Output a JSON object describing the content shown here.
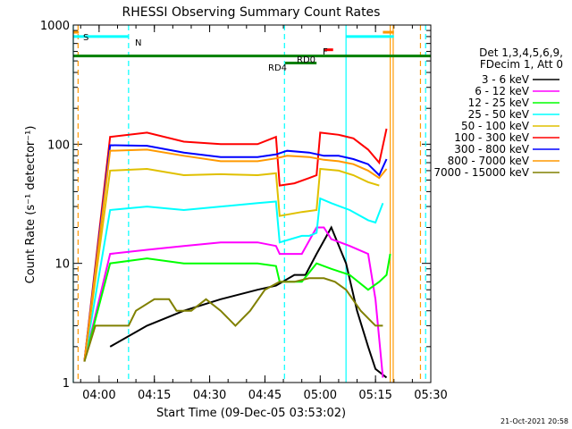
{
  "chart_data": {
    "type": "line",
    "title": "RHESSI Observing Summary Count Rates",
    "xlabel": "Start Time (09-Dec-05 03:53:02)",
    "ylabel": "Count Rate (s⁻¹ detector⁻¹)",
    "yscale": "log",
    "ylim": [
      1,
      1000
    ],
    "xlim_minutes_after_0353": [
      0,
      97
    ],
    "x_ticks": [
      {
        "label": "04:00",
        "t": 7
      },
      {
        "label": "04:15",
        "t": 22
      },
      {
        "label": "04:30",
        "t": 37
      },
      {
        "label": "04:45",
        "t": 52
      },
      {
        "label": "05:00",
        "t": 67
      },
      {
        "label": "05:15",
        "t": 82
      },
      {
        "label": "05:30",
        "t": 97
      }
    ],
    "y_ticks": [
      {
        "label": "1",
        "value": 1
      },
      {
        "label": "10",
        "value": 10
      },
      {
        "label": "100",
        "value": 100
      },
      {
        "label": "1000",
        "value": 1000
      }
    ],
    "legend_header": [
      "Det 1,3,4,5,6,9,",
      "FDecim 1, Att 0"
    ],
    "legend_position": "right",
    "timestamp": "21-Oct-2021 20:58",
    "series": [
      {
        "name": "3 - 6 keV",
        "color": "#000000",
        "points": [
          [
            10,
            2
          ],
          [
            20,
            3
          ],
          [
            30,
            4
          ],
          [
            40,
            5
          ],
          [
            50,
            6
          ],
          [
            55,
            6.5
          ],
          [
            60,
            8
          ],
          [
            63,
            8
          ],
          [
            66,
            12
          ],
          [
            70,
            20
          ],
          [
            74,
            10
          ],
          [
            77,
            4
          ],
          [
            80,
            2
          ],
          [
            82,
            1.3
          ],
          [
            85,
            1.1
          ]
        ]
      },
      {
        "name": "6 - 12 keV",
        "color": "#ff00ff",
        "points": [
          [
            3,
            1.5
          ],
          [
            10,
            12
          ],
          [
            20,
            13
          ],
          [
            30,
            14
          ],
          [
            40,
            15
          ],
          [
            50,
            15
          ],
          [
            55,
            14
          ],
          [
            56,
            12
          ],
          [
            62,
            12
          ],
          [
            66,
            20
          ],
          [
            68,
            20
          ],
          [
            70,
            16
          ],
          [
            75,
            14
          ],
          [
            80,
            12
          ],
          [
            82,
            5
          ],
          [
            84,
            1.1
          ]
        ]
      },
      {
        "name": "12 - 25 keV",
        "color": "#00ff00",
        "points": [
          [
            3,
            1.5
          ],
          [
            10,
            10
          ],
          [
            20,
            11
          ],
          [
            30,
            10
          ],
          [
            40,
            10
          ],
          [
            50,
            10
          ],
          [
            55,
            9.5
          ],
          [
            56,
            7
          ],
          [
            62,
            7
          ],
          [
            66,
            10
          ],
          [
            70,
            9
          ],
          [
            75,
            8
          ],
          [
            80,
            6
          ],
          [
            83,
            7
          ],
          [
            85,
            8
          ],
          [
            86,
            12
          ]
        ]
      },
      {
        "name": "25 - 50 keV",
        "color": "#00ffff",
        "points": [
          [
            3,
            1.5
          ],
          [
            10,
            28
          ],
          [
            20,
            30
          ],
          [
            30,
            28
          ],
          [
            40,
            30
          ],
          [
            50,
            32
          ],
          [
            55,
            33
          ],
          [
            56,
            15
          ],
          [
            62,
            17
          ],
          [
            64,
            17
          ],
          [
            66,
            18
          ],
          [
            67,
            35
          ],
          [
            70,
            32
          ],
          [
            75,
            28
          ],
          [
            80,
            23
          ],
          [
            82,
            22
          ],
          [
            84,
            32
          ]
        ]
      },
      {
        "name": "50 - 100 keV",
        "color": "#e0c000",
        "points": [
          [
            3,
            1.5
          ],
          [
            10,
            60
          ],
          [
            20,
            62
          ],
          [
            30,
            55
          ],
          [
            40,
            56
          ],
          [
            50,
            55
          ],
          [
            55,
            57
          ],
          [
            56,
            25
          ],
          [
            62,
            27
          ],
          [
            66,
            28
          ],
          [
            67,
            62
          ],
          [
            72,
            60
          ],
          [
            76,
            55
          ],
          [
            80,
            48
          ],
          [
            83,
            45
          ]
        ]
      },
      {
        "name": "100 - 300 keV",
        "color": "#ff0000",
        "points": [
          [
            3,
            1.5
          ],
          [
            10,
            115
          ],
          [
            20,
            125
          ],
          [
            30,
            105
          ],
          [
            40,
            100
          ],
          [
            50,
            100
          ],
          [
            55,
            115
          ],
          [
            56,
            45
          ],
          [
            60,
            47
          ],
          [
            64,
            52
          ],
          [
            66,
            55
          ],
          [
            67,
            125
          ],
          [
            72,
            120
          ],
          [
            76,
            112
          ],
          [
            80,
            90
          ],
          [
            83,
            70
          ],
          [
            85,
            135
          ]
        ]
      },
      {
        "name": "300 - 800 keV",
        "color": "#0000ff",
        "points": [
          [
            3,
            1.5
          ],
          [
            10,
            98
          ],
          [
            20,
            97
          ],
          [
            30,
            85
          ],
          [
            40,
            78
          ],
          [
            50,
            78
          ],
          [
            55,
            82
          ],
          [
            58,
            88
          ],
          [
            64,
            85
          ],
          [
            68,
            80
          ],
          [
            72,
            80
          ],
          [
            76,
            75
          ],
          [
            80,
            68
          ],
          [
            83,
            55
          ],
          [
            85,
            75
          ]
        ]
      },
      {
        "name": "800 - 7000 keV",
        "color": "#ff9900",
        "points": [
          [
            3,
            1.5
          ],
          [
            10,
            88
          ],
          [
            20,
            90
          ],
          [
            30,
            80
          ],
          [
            40,
            72
          ],
          [
            50,
            72
          ],
          [
            55,
            76
          ],
          [
            58,
            80
          ],
          [
            64,
            78
          ],
          [
            68,
            74
          ],
          [
            72,
            72
          ],
          [
            76,
            68
          ],
          [
            80,
            60
          ],
          [
            83,
            52
          ],
          [
            85,
            62
          ]
        ]
      },
      {
        "name": "7000 - 15000 keV",
        "color": "#808000",
        "points": [
          [
            3,
            1.5
          ],
          [
            6,
            3
          ],
          [
            12,
            3
          ],
          [
            15,
            3
          ],
          [
            17,
            4
          ],
          [
            22,
            5
          ],
          [
            26,
            5
          ],
          [
            28,
            4
          ],
          [
            32,
            4
          ],
          [
            36,
            5
          ],
          [
            40,
            4
          ],
          [
            44,
            3
          ],
          [
            48,
            4
          ],
          [
            52,
            6
          ],
          [
            56,
            7
          ],
          [
            60,
            7
          ],
          [
            64,
            7.5
          ],
          [
            68,
            7.5
          ],
          [
            71,
            7
          ],
          [
            74,
            6
          ],
          [
            78,
            4
          ],
          [
            82,
            3
          ],
          [
            84,
            3
          ]
        ]
      }
    ],
    "state_flags": {
      "S_label": "S",
      "N_label": "N",
      "F_label": "F",
      "RD0_label": "RD0",
      "RD4_label": "RD4"
    },
    "attenuator_bars": [
      {
        "label": "N",
        "color": "#00ffff",
        "t0": 0,
        "t1": 15,
        "value": 800
      },
      {
        "label": "",
        "color": "#00ffff",
        "t0": 74,
        "t1": 87,
        "value": 800
      },
      {
        "label": "S",
        "color": "#ff9900",
        "t0": 0,
        "t1": 1.5,
        "value": 870
      },
      {
        "label": "",
        "color": "#ff9900",
        "t0": 84,
        "t1": 87,
        "value": 870
      },
      {
        "label": "RD0",
        "color": "#008000",
        "t0": 0,
        "t1": 97,
        "value": 550
      },
      {
        "label": "RD4",
        "color": "#008000",
        "t0": 57.5,
        "t1": 66,
        "value": 480
      },
      {
        "label": "F",
        "color": "#ff0000",
        "t0": 68,
        "t1": 70.5,
        "value": 620
      }
    ],
    "vertical_markers": [
      {
        "t": 0,
        "color": "#00ffff",
        "style": "solid"
      },
      {
        "t": 1.3,
        "color": "#ff9900",
        "style": "dashed"
      },
      {
        "t": 15,
        "color": "#00ffff",
        "style": "dashed"
      },
      {
        "t": 57.3,
        "color": "#00ffff",
        "style": "dashed"
      },
      {
        "t": 74,
        "color": "#00ffff",
        "style": "solid"
      },
      {
        "t": 86,
        "color": "#ff9900",
        "style": "solid"
      },
      {
        "t": 86.8,
        "color": "#ff9900",
        "style": "solid"
      },
      {
        "t": 94.2,
        "color": "#ff9900",
        "style": "dashed"
      },
      {
        "t": 95.6,
        "color": "#00ffff",
        "style": "dashed"
      }
    ]
  }
}
